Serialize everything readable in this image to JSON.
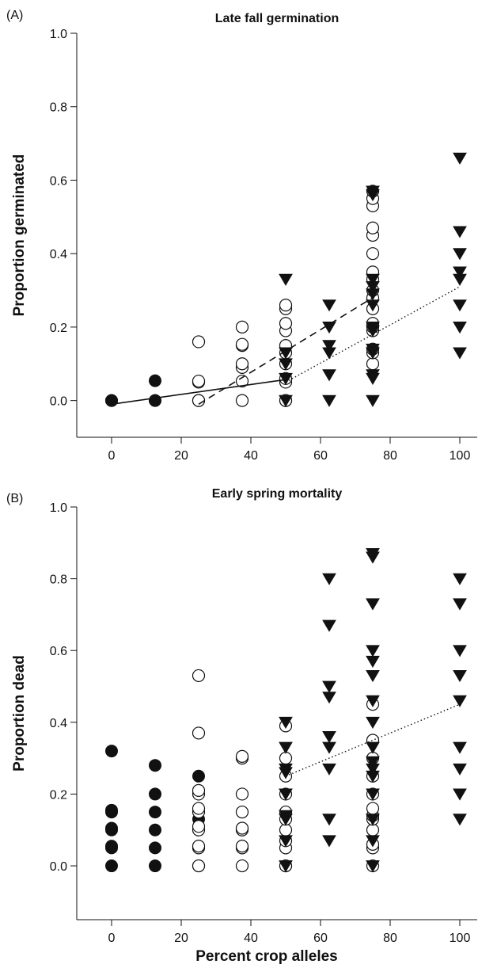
{
  "figure": {
    "xlabel": "Percent crop alleles"
  },
  "colors": {
    "ink": "#111111",
    "background": "#ffffff"
  },
  "chart_data": [
    {
      "panel_label": "(A)",
      "type": "scatter",
      "title": "Late fall germination",
      "xlabel": "",
      "ylabel": "Proportion germinated",
      "xlim": [
        -10,
        105
      ],
      "ylim": [
        -0.1,
        1.0
      ],
      "xticks": [
        0,
        20,
        40,
        60,
        80,
        100
      ],
      "yticks": [
        0.0,
        0.2,
        0.4,
        0.6,
        0.8,
        1.0
      ],
      "grid": false,
      "series": [
        {
          "marker": "filled-circle",
          "points": [
            [
              0,
              0.0
            ],
            [
              0,
              0.0
            ],
            [
              0,
              0.0
            ],
            [
              12.5,
              0.0
            ],
            [
              12.5,
              0.0
            ],
            [
              12.5,
              0.054
            ]
          ]
        },
        {
          "marker": "open-circle",
          "points": [
            [
              25,
              0.0
            ],
            [
              25,
              0.0
            ],
            [
              25,
              0.05
            ],
            [
              25,
              0.053
            ],
            [
              25,
              0.16
            ],
            [
              37.5,
              0.0
            ],
            [
              37.5,
              0.053
            ],
            [
              37.5,
              0.09
            ],
            [
              37.5,
              0.1
            ],
            [
              37.5,
              0.15
            ],
            [
              37.5,
              0.153
            ],
            [
              37.5,
              0.2
            ],
            [
              50,
              0.0
            ],
            [
              50,
              0.0
            ],
            [
              50,
              0.05
            ],
            [
              50,
              0.06
            ],
            [
              50,
              0.1
            ],
            [
              50,
              0.13
            ],
            [
              50,
              0.15
            ],
            [
              50,
              0.19
            ],
            [
              50,
              0.21
            ],
            [
              50,
              0.25
            ],
            [
              50,
              0.26
            ],
            [
              75,
              0.1
            ],
            [
              75,
              0.13
            ],
            [
              75,
              0.14
            ],
            [
              75,
              0.19
            ],
            [
              75,
              0.2
            ],
            [
              75,
              0.21
            ],
            [
              75,
              0.25
            ],
            [
              75,
              0.28
            ],
            [
              75,
              0.3
            ],
            [
              75,
              0.33
            ],
            [
              75,
              0.35
            ],
            [
              75,
              0.4
            ],
            [
              75,
              0.45
            ],
            [
              75,
              0.47
            ],
            [
              75,
              0.53
            ],
            [
              75,
              0.55
            ],
            [
              75,
              0.57
            ]
          ]
        },
        {
          "marker": "filled-triangle",
          "points": [
            [
              50,
              0.0
            ],
            [
              50,
              0.06
            ],
            [
              50,
              0.1
            ],
            [
              50,
              0.13
            ],
            [
              50,
              0.33
            ],
            [
              62.5,
              0.0
            ],
            [
              62.5,
              0.07
            ],
            [
              62.5,
              0.13
            ],
            [
              62.5,
              0.15
            ],
            [
              62.5,
              0.2
            ],
            [
              62.5,
              0.26
            ],
            [
              75,
              0.0
            ],
            [
              75,
              0.06
            ],
            [
              75,
              0.07
            ],
            [
              75,
              0.13
            ],
            [
              75,
              0.14
            ],
            [
              75,
              0.19
            ],
            [
              75,
              0.2
            ],
            [
              75,
              0.26
            ],
            [
              75,
              0.29
            ],
            [
              75,
              0.31
            ],
            [
              75,
              0.33
            ],
            [
              75,
              0.56
            ],
            [
              75,
              0.57
            ],
            [
              100,
              0.13
            ],
            [
              100,
              0.2
            ],
            [
              100,
              0.26
            ],
            [
              100,
              0.33
            ],
            [
              100,
              0.35
            ],
            [
              100,
              0.4
            ],
            [
              100,
              0.46
            ],
            [
              100,
              0.66
            ]
          ]
        }
      ],
      "fit_lines": [
        {
          "style": "solid",
          "points": [
            [
              0,
              -0.01
            ],
            [
              50,
              0.057
            ]
          ]
        },
        {
          "style": "dashed",
          "points": [
            [
              25,
              -0.01
            ],
            [
              75,
              0.28
            ]
          ]
        },
        {
          "style": "dotted",
          "points": [
            [
              50,
              0.05
            ],
            [
              100,
              0.31
            ]
          ]
        }
      ]
    },
    {
      "panel_label": "(B)",
      "type": "scatter",
      "title": "Early spring mortality",
      "xlabel": "Percent crop alleles",
      "ylabel": "Proportion dead",
      "xlim": [
        -10,
        105
      ],
      "ylim": [
        -0.15,
        1.0
      ],
      "xticks": [
        0,
        20,
        40,
        60,
        80,
        100
      ],
      "yticks": [
        0.0,
        0.2,
        0.4,
        0.6,
        0.8,
        1.0
      ],
      "grid": false,
      "series": [
        {
          "marker": "filled-circle",
          "points": [
            [
              0,
              0.0
            ],
            [
              0,
              0.05
            ],
            [
              0,
              0.055
            ],
            [
              0,
              0.1
            ],
            [
              0,
              0.105
            ],
            [
              0,
              0.15
            ],
            [
              0,
              0.155
            ],
            [
              0,
              0.32
            ],
            [
              12.5,
              0.0
            ],
            [
              12.5,
              0.05
            ],
            [
              12.5,
              0.1
            ],
            [
              12.5,
              0.15
            ],
            [
              12.5,
              0.2
            ],
            [
              12.5,
              0.28
            ],
            [
              25,
              0.13
            ],
            [
              25,
              0.25
            ]
          ]
        },
        {
          "marker": "open-circle",
          "points": [
            [
              25,
              0.0
            ],
            [
              25,
              0.0
            ],
            [
              25,
              0.05
            ],
            [
              25,
              0.055
            ],
            [
              25,
              0.1
            ],
            [
              25,
              0.11
            ],
            [
              25,
              0.15
            ],
            [
              25,
              0.16
            ],
            [
              25,
              0.2
            ],
            [
              25,
              0.21
            ],
            [
              25,
              0.37
            ],
            [
              25,
              0.53
            ],
            [
              37.5,
              0.0
            ],
            [
              37.5,
              0.05
            ],
            [
              37.5,
              0.055
            ],
            [
              37.5,
              0.1
            ],
            [
              37.5,
              0.105
            ],
            [
              37.5,
              0.15
            ],
            [
              37.5,
              0.2
            ],
            [
              37.5,
              0.3
            ],
            [
              37.5,
              0.305
            ],
            [
              50,
              0.0
            ],
            [
              50,
              0.0
            ],
            [
              50,
              0.05
            ],
            [
              50,
              0.07
            ],
            [
              50,
              0.1
            ],
            [
              50,
              0.13
            ],
            [
              50,
              0.15
            ],
            [
              50,
              0.2
            ],
            [
              50,
              0.25
            ],
            [
              50,
              0.3
            ],
            [
              50,
              0.39
            ],
            [
              75,
              0.0
            ],
            [
              75,
              0.05
            ],
            [
              75,
              0.06
            ],
            [
              75,
              0.1
            ],
            [
              75,
              0.13
            ],
            [
              75,
              0.14
            ],
            [
              75,
              0.16
            ],
            [
              75,
              0.2
            ],
            [
              75,
              0.25
            ],
            [
              75,
              0.3
            ],
            [
              75,
              0.35
            ],
            [
              75,
              0.45
            ]
          ]
        },
        {
          "marker": "filled-triangle",
          "points": [
            [
              50,
              0.0
            ],
            [
              50,
              0.07
            ],
            [
              50,
              0.13
            ],
            [
              50,
              0.14
            ],
            [
              50,
              0.2
            ],
            [
              50,
              0.26
            ],
            [
              50,
              0.27
            ],
            [
              50,
              0.33
            ],
            [
              50,
              0.4
            ],
            [
              62.5,
              0.07
            ],
            [
              62.5,
              0.13
            ],
            [
              62.5,
              0.27
            ],
            [
              62.5,
              0.33
            ],
            [
              62.5,
              0.36
            ],
            [
              62.5,
              0.47
            ],
            [
              62.5,
              0.5
            ],
            [
              62.5,
              0.67
            ],
            [
              62.5,
              0.8
            ],
            [
              75,
              0.0
            ],
            [
              75,
              0.07
            ],
            [
              75,
              0.13
            ],
            [
              75,
              0.2
            ],
            [
              75,
              0.25
            ],
            [
              75,
              0.27
            ],
            [
              75,
              0.29
            ],
            [
              75,
              0.33
            ],
            [
              75,
              0.4
            ],
            [
              75,
              0.46
            ],
            [
              75,
              0.53
            ],
            [
              75,
              0.57
            ],
            [
              75,
              0.6
            ],
            [
              75,
              0.73
            ],
            [
              75,
              0.86
            ],
            [
              75,
              0.87
            ],
            [
              100,
              0.13
            ],
            [
              100,
              0.2
            ],
            [
              100,
              0.27
            ],
            [
              100,
              0.33
            ],
            [
              100,
              0.46
            ],
            [
              100,
              0.53
            ],
            [
              100,
              0.6
            ],
            [
              100,
              0.73
            ],
            [
              100,
              0.8
            ]
          ]
        }
      ],
      "fit_lines": [
        {
          "style": "dotted",
          "points": [
            [
              50,
              0.25
            ],
            [
              100,
              0.45
            ]
          ]
        }
      ]
    }
  ]
}
